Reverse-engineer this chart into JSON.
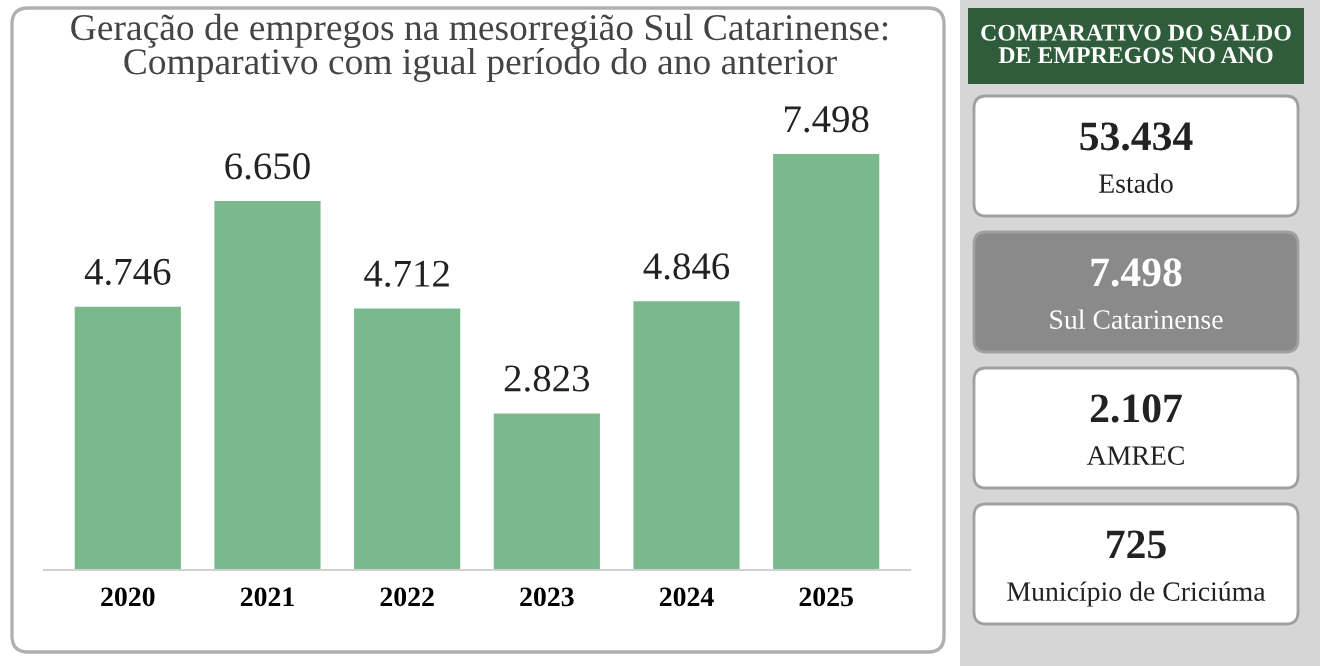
{
  "chart_data": [
    {
      "type": "bar",
      "title": "Geração de empregos na mesorregião Sul Catarinense:\nComparativo com igual período do ano anterior",
      "categories": [
        "2020",
        "2021",
        "2022",
        "2023",
        "2024",
        "2025"
      ],
      "values": [
        4746,
        6650,
        4712,
        2823,
        4846,
        7498
      ],
      "value_labels": [
        "4.746",
        "6.650",
        "4.712",
        "2.823",
        "4.846",
        "7.498"
      ],
      "color": "#79b98b"
    },
    {
      "type": "other",
      "title": "COMPARATIVO DO SALDO\nDE EMPREGOS NO ANO",
      "annotations": [
        "53.434",
        "Estado",
        "7.498",
        "Sul Catarinense",
        "2.107",
        "AMREC",
        "725",
        "Município de Criciúma"
      ]
    }
  ]
}
